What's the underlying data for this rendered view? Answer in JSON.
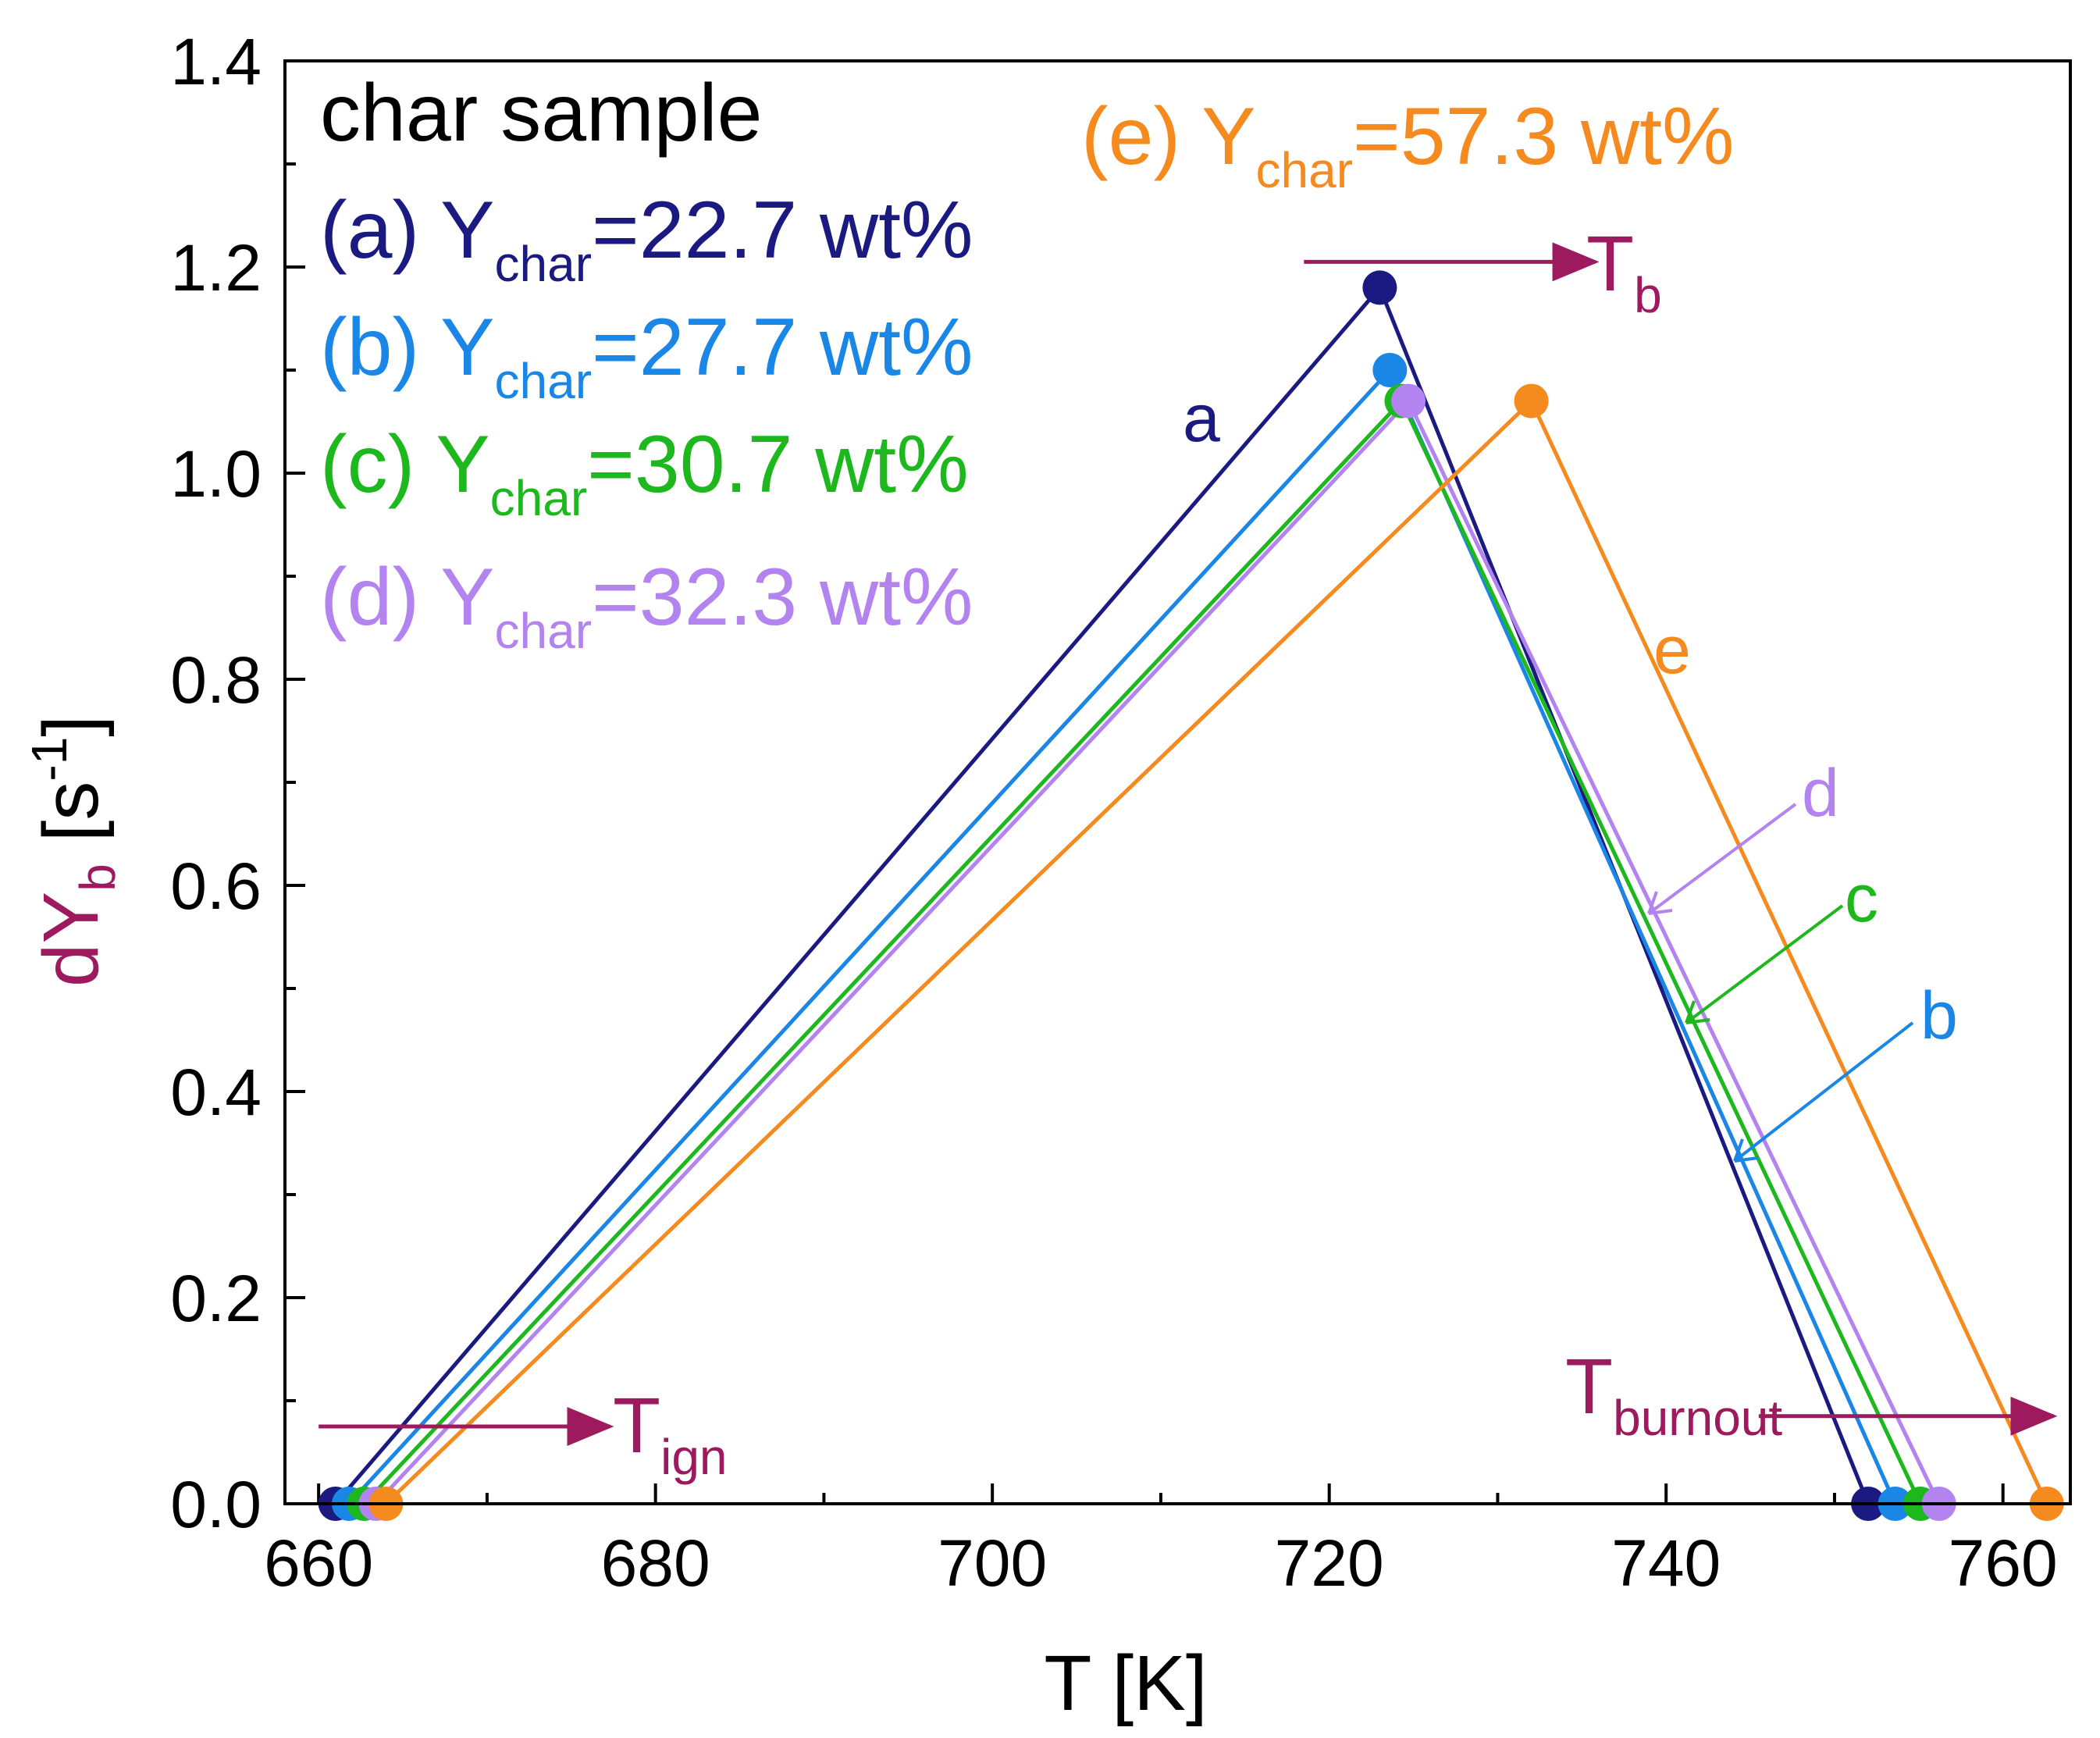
{
  "chart_data": {
    "type": "line",
    "xlabel": "T [K]",
    "ylabel": {
      "main": "dY",
      "sub": "b",
      "unit_open": " [s",
      "unit_sup": "-1",
      "unit_close": "]"
    },
    "xlim": [
      658,
      764
    ],
    "ylim": [
      0,
      1.4
    ],
    "xticks": [
      660,
      680,
      700,
      720,
      740,
      760
    ],
    "yticks": [
      0.0,
      0.2,
      0.4,
      0.6,
      0.8,
      1.0,
      1.2,
      1.4
    ],
    "ytick_labels": [
      "0.0",
      "0.2",
      "0.4",
      "0.6",
      "0.8",
      "1.0",
      "1.2",
      "1.4"
    ],
    "legend_title": "char sample",
    "series": [
      {
        "id": "a",
        "name": "(a)",
        "prefix": "Y",
        "sub": "char",
        "value": "=22.7 wt%",
        "color": "#1a1a80",
        "label": "a",
        "points": [
          {
            "x": 661.0,
            "y": 0.0
          },
          {
            "x": 723.0,
            "y": 1.18
          },
          {
            "x": 752.0,
            "y": 0.0
          }
        ]
      },
      {
        "id": "b",
        "name": "(b)",
        "prefix": "Y",
        "sub": "char",
        "value": "=27.7 wt%",
        "color": "#1a86e6",
        "label": "b",
        "points": [
          {
            "x": 661.8,
            "y": 0.0
          },
          {
            "x": 723.6,
            "y": 1.1
          },
          {
            "x": 753.6,
            "y": 0.0
          }
        ]
      },
      {
        "id": "c",
        "name": "(c)",
        "prefix": "Y",
        "sub": "char",
        "value": "=30.7 wt%",
        "color": "#1db81d",
        "label": "c",
        "points": [
          {
            "x": 662.7,
            "y": 0.0
          },
          {
            "x": 724.3,
            "y": 1.07
          },
          {
            "x": 755.1,
            "y": 0.0
          }
        ]
      },
      {
        "id": "d",
        "name": "(d)",
        "prefix": "Y",
        "sub": "char",
        "value": "=32.3 wt%",
        "color": "#b384f0",
        "label": "d",
        "points": [
          {
            "x": 663.4,
            "y": 0.0
          },
          {
            "x": 724.7,
            "y": 1.07
          },
          {
            "x": 756.2,
            "y": 0.0
          }
        ]
      },
      {
        "id": "e",
        "name": "(e)",
        "prefix": "Y",
        "sub": "char",
        "value": "=57.3 wt%",
        "color": "#f58a1f",
        "label": "e",
        "points": [
          {
            "x": 664.0,
            "y": 0.0
          },
          {
            "x": 732.0,
            "y": 1.07
          },
          {
            "x": 762.6,
            "y": 0.0
          }
        ]
      }
    ],
    "annotations": [
      {
        "id": "tign",
        "main": "T",
        "sub": "ign",
        "color": "#9e1a5e",
        "arrow": {
          "x1": 660.0,
          "y1": 0.075,
          "x2": 677.3,
          "y2": 0.075
        }
      },
      {
        "id": "tb",
        "main": "T",
        "sub": "b",
        "color": "#9e1a5e",
        "arrow": {
          "x1": 718.5,
          "y1": 1.205,
          "x2": 735.8,
          "y2": 1.205
        }
      },
      {
        "id": "tburnout",
        "main": "T",
        "sub": "burnout",
        "color": "#9e1a5e",
        "arrow": {
          "x1": 745.5,
          "y1": 0.085,
          "x2": 763.0,
          "y2": 0.085
        }
      }
    ]
  }
}
